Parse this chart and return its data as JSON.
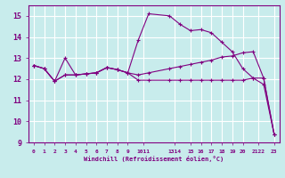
{
  "background_color": "#c8ecec",
  "grid_color": "#ffffff",
  "line_color": "#800080",
  "xlabel": "Windchill (Refroidissement éolien,°C)",
  "xlim": [
    -0.5,
    23.5
  ],
  "ylim": [
    9,
    15.5
  ],
  "yticks": [
    9,
    10,
    11,
    12,
    13,
    14,
    15
  ],
  "xtick_positions": [
    0,
    1,
    2,
    3,
    4,
    5,
    6,
    7,
    8,
    9,
    10.5,
    13.5,
    15,
    16,
    17,
    18,
    19,
    20,
    21.5,
    23
  ],
  "xtick_labels": [
    "0",
    "1",
    "2",
    "3",
    "4",
    "5",
    "6",
    "7",
    "8",
    "9",
    "1011",
    "1314",
    "15",
    "16",
    "17",
    "18",
    "19",
    "20",
    "2122",
    "23"
  ],
  "series1_x": [
    0,
    1,
    2,
    3,
    4,
    5,
    6,
    7,
    8,
    9,
    10,
    11,
    13,
    14,
    15,
    16,
    17,
    18,
    19,
    20,
    21,
    22,
    23
  ],
  "series1_y": [
    12.65,
    12.5,
    11.9,
    12.2,
    12.2,
    12.25,
    12.3,
    12.55,
    12.45,
    12.3,
    11.95,
    11.95,
    11.95,
    11.95,
    11.95,
    11.95,
    11.95,
    11.95,
    11.95,
    11.95,
    12.05,
    12.05,
    9.4
  ],
  "series2_x": [
    0,
    1,
    2,
    3,
    4,
    5,
    6,
    7,
    8,
    9,
    10,
    11,
    13,
    14,
    15,
    16,
    17,
    18,
    19,
    20,
    21,
    22,
    23
  ],
  "series2_y": [
    12.65,
    12.5,
    11.9,
    13.0,
    12.2,
    12.25,
    12.3,
    12.55,
    12.45,
    12.3,
    13.85,
    15.1,
    15.0,
    14.6,
    14.3,
    14.35,
    14.2,
    13.75,
    13.3,
    12.5,
    12.05,
    11.75,
    9.4
  ],
  "series3_x": [
    0,
    1,
    2,
    3,
    4,
    5,
    6,
    7,
    8,
    9,
    10,
    11,
    13,
    14,
    15,
    16,
    17,
    18,
    19,
    20,
    21,
    22,
    23
  ],
  "series3_y": [
    12.65,
    12.5,
    11.9,
    12.2,
    12.2,
    12.25,
    12.3,
    12.55,
    12.45,
    12.3,
    12.2,
    12.3,
    12.5,
    12.6,
    12.7,
    12.8,
    12.9,
    13.05,
    13.1,
    13.25,
    13.3,
    12.05,
    9.4
  ],
  "font_color": "#800080",
  "marker": "+",
  "marker_size": 3,
  "linewidth": 0.8
}
